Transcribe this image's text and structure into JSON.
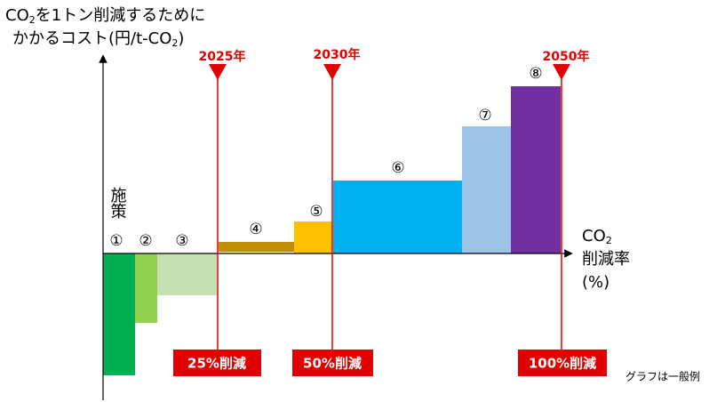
{
  "y_axis_label": {
    "line1_a": "CO",
    "line1_sub": "2",
    "line1_b": "を1トン削減するために",
    "line2_a": "かかるコスト(円/t-CO",
    "line2_sub": "2",
    "line2_b": ")"
  },
  "measure_label": "施策",
  "measures": [
    "①",
    "②",
    "③",
    "④",
    "⑤",
    "⑥",
    "⑦",
    "⑧"
  ],
  "years": [
    "2025年",
    "2030年",
    "2050年"
  ],
  "reductions": [
    "25%削減",
    "50%削減",
    "100%削減"
  ],
  "x_axis_label": {
    "a": "CO",
    "sub": "2",
    "line2": "削減率",
    "line3": "(%)"
  },
  "note": "グラフは一般例"
}
